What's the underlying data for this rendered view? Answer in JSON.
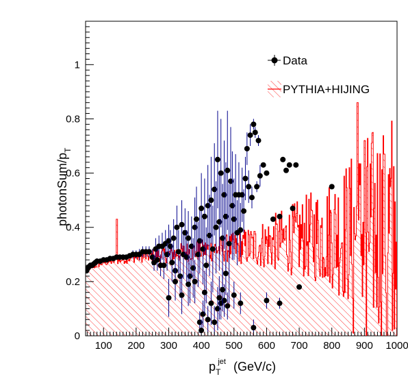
{
  "chart_data": {
    "type": "scatter",
    "title": "",
    "xlabel_main": "p",
    "xlabel_sub": "T",
    "xlabel_sup": "jet",
    "xlabel_unit": "(GeV/c)",
    "ylabel_main": "photonSum/p",
    "ylabel_sub": "T",
    "xlim": [
      45,
      1000
    ],
    "ylim": [
      0,
      1.16
    ],
    "xticks": [
      100,
      200,
      300,
      400,
      500,
      600,
      700,
      800,
      900,
      1000
    ],
    "yticks": [
      0,
      0.2,
      0.4,
      0.6,
      0.8,
      1
    ],
    "ytick_labels": [
      "0",
      "0.2",
      "0.4",
      "0.6",
      "0.8",
      "1"
    ],
    "legend_position": "top-right",
    "legend": [
      "Data",
      "PYTHIA+HIJING"
    ],
    "series": [
      {
        "name": "Data",
        "kind": "points-with-errors",
        "marker_color": "#000000",
        "error_color": "#00008b",
        "x": [
          48,
          52,
          56,
          60,
          65,
          70,
          75,
          80,
          90,
          100,
          110,
          120,
          130,
          140,
          150,
          160,
          170,
          180,
          190,
          200,
          210,
          220,
          230,
          240,
          250,
          255,
          260,
          265,
          270,
          275,
          280,
          285,
          290,
          295,
          300,
          305,
          310,
          315,
          320,
          325,
          330,
          335,
          340,
          345,
          350,
          355,
          360,
          365,
          370,
          375,
          380,
          385,
          390,
          395,
          400,
          405,
          410,
          415,
          420,
          425,
          430,
          435,
          440,
          445,
          450,
          455,
          460,
          465,
          470,
          475,
          480,
          485,
          490,
          495,
          500,
          505,
          510,
          515,
          520,
          525,
          530,
          535,
          540,
          545,
          550,
          555,
          560,
          565,
          570,
          575,
          580,
          590,
          600,
          620,
          640,
          650,
          660,
          670,
          680,
          690,
          800,
          395,
          400,
          405,
          420,
          440,
          460,
          470,
          480,
          500,
          520,
          560,
          600,
          640,
          700,
          300,
          320,
          340,
          360,
          380,
          410,
          430,
          450,
          455,
          465,
          475
        ],
        "y": [
          0.24,
          0.25,
          0.255,
          0.26,
          0.26,
          0.265,
          0.27,
          0.275,
          0.275,
          0.28,
          0.28,
          0.285,
          0.285,
          0.29,
          0.29,
          0.29,
          0.29,
          0.295,
          0.3,
          0.3,
          0.3,
          0.31,
          0.31,
          0.31,
          0.29,
          0.27,
          0.32,
          0.28,
          0.33,
          0.26,
          0.33,
          0.26,
          0.34,
          0.3,
          0.35,
          0.33,
          0.27,
          0.36,
          0.24,
          0.4,
          0.31,
          0.22,
          0.41,
          0.3,
          0.38,
          0.29,
          0.36,
          0.22,
          0.33,
          0.25,
          0.4,
          0.43,
          0.3,
          0.35,
          0.47,
          0.32,
          0.44,
          0.26,
          0.48,
          0.37,
          0.5,
          0.32,
          0.54,
          0.4,
          0.65,
          0.42,
          0.6,
          0.36,
          0.52,
          0.44,
          0.61,
          0.34,
          0.57,
          0.48,
          0.43,
          0.52,
          0.38,
          0.52,
          0.39,
          0.52,
          0.46,
          0.58,
          0.69,
          0.55,
          0.74,
          0.51,
          0.78,
          0.75,
          0.55,
          0.72,
          0.59,
          0.63,
          0.6,
          0.43,
          0.44,
          0.65,
          0.61,
          0.63,
          0.47,
          0.63,
          0.55,
          0.05,
          0.02,
          0.08,
          0.06,
          0.05,
          0.12,
          0.13,
          0.11,
          0.15,
          0.12,
          0.03,
          0.13,
          0.12,
          0.18,
          0.14,
          0.2,
          0.15,
          0.19,
          0.2,
          0.16,
          0.12,
          0.1,
          0.14,
          0.17,
          0.23
        ],
        "yerr": [
          0.01,
          0.01,
          0.01,
          0.01,
          0.01,
          0.01,
          0.01,
          0.01,
          0.01,
          0.01,
          0.01,
          0.01,
          0.01,
          0.01,
          0.01,
          0.01,
          0.01,
          0.01,
          0.015,
          0.015,
          0.02,
          0.02,
          0.02,
          0.02,
          0.03,
          0.03,
          0.04,
          0.04,
          0.04,
          0.04,
          0.05,
          0.05,
          0.05,
          0.06,
          0.06,
          0.06,
          0.07,
          0.07,
          0.07,
          0.08,
          0.08,
          0.08,
          0.09,
          0.09,
          0.09,
          0.1,
          0.1,
          0.1,
          0.11,
          0.11,
          0.11,
          0.12,
          0.12,
          0.12,
          0.13,
          0.13,
          0.14,
          0.14,
          0.15,
          0.15,
          0.16,
          0.16,
          0.17,
          0.17,
          0.18,
          0.18,
          0.2,
          0.2,
          0.2,
          0.2,
          0.22,
          0.22,
          0.2,
          0.2,
          0.15,
          0.15,
          0.12,
          0.12,
          0.1,
          0.1,
          0.08,
          0.08,
          0.06,
          0.06,
          0.04,
          0.04,
          0.02,
          0.02,
          0.02,
          0.02,
          0.04,
          0.0,
          0.0,
          0.0,
          0.0,
          0.0,
          0.0,
          0.0,
          0.0,
          0.0,
          0.0,
          0.04,
          0.04,
          0.05,
          0.05,
          0.06,
          0.06,
          0.06,
          0.05,
          0.05,
          0.04,
          0.03,
          0.03,
          0.02,
          0.0,
          0.07,
          0.07,
          0.07,
          0.08,
          0.08,
          0.08,
          0.08,
          0.08,
          0.08,
          0.08,
          0.08
        ]
      },
      {
        "name": "PYTHIA+HIJING",
        "kind": "histogram-hatched",
        "line_color": "#ff0000",
        "hatch_color": "#ff0000",
        "x_start": 45,
        "x_end": 1000,
        "trend": [
          [
            45,
            0.245
          ],
          [
            100,
            0.27
          ],
          [
            150,
            0.28
          ],
          [
            200,
            0.29
          ],
          [
            250,
            0.295
          ],
          [
            300,
            0.3
          ],
          [
            350,
            0.31
          ],
          [
            400,
            0.315
          ],
          [
            450,
            0.32
          ],
          [
            500,
            0.325
          ],
          [
            550,
            0.33
          ],
          [
            600,
            0.34
          ],
          [
            650,
            0.35
          ],
          [
            700,
            0.36
          ],
          [
            750,
            0.37
          ],
          [
            800,
            0.38
          ],
          [
            850,
            0.38
          ],
          [
            900,
            0.39
          ],
          [
            950,
            0.4
          ],
          [
            1000,
            0.4
          ]
        ],
        "noise": [
          [
            45,
            0.005
          ],
          [
            100,
            0.008
          ],
          [
            200,
            0.012
          ],
          [
            300,
            0.02
          ],
          [
            400,
            0.025
          ],
          [
            500,
            0.035
          ],
          [
            600,
            0.06
          ],
          [
            700,
            0.09
          ],
          [
            800,
            0.13
          ],
          [
            900,
            0.22
          ],
          [
            1000,
            0.3
          ]
        ],
        "spikes": [
          [
            140,
            0.43
          ],
          [
            878,
            0.86
          ],
          [
            900,
            0.72
          ],
          [
            960,
            0.67
          ],
          [
            865,
            0.01
          ],
          [
            905,
            0.0
          ],
          [
            968,
            0.0
          ],
          [
            985,
            0.02
          ]
        ]
      }
    ]
  }
}
